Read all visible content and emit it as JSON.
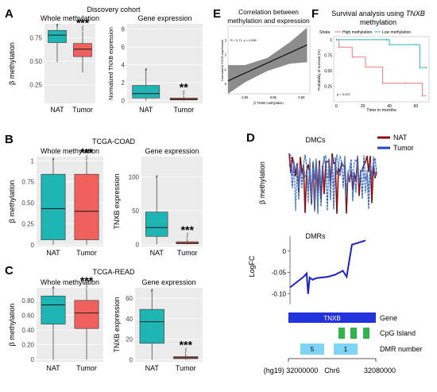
{
  "panel_letters": [
    "A",
    "B",
    "C",
    "D",
    "E",
    "F"
  ],
  "cohorts": {
    "discovery": "Discovery cohort",
    "coad": "TCGA-COAD",
    "read": "TCGA-READ"
  },
  "colors": {
    "nat": "#1fb5b5",
    "tumor": "#f0605d",
    "panel_bg": "#ebebeb",
    "dmr_line": "#1a22c8",
    "gene": "#2233dd",
    "cpg": "#2db44a",
    "dmr_box": "#7fd3f5",
    "km_high": "#f07a7a",
    "km_low": "#2bb5c0"
  },
  "chart_data": [
    {
      "id": "A_methylation",
      "type": "box",
      "title": "Whole methylation",
      "ylabel": "β methylation",
      "categories": [
        "NAT",
        "Tumor"
      ],
      "yticks": [
        0.25,
        0.5,
        0.75
      ],
      "ylim": [
        0.05,
        0.9
      ],
      "boxes": [
        {
          "q1": 0.7,
          "median": 0.78,
          "q3": 0.83,
          "whisker_low": 0.49,
          "whisker_high": 0.87
        },
        {
          "q1": 0.55,
          "median": 0.63,
          "q3": 0.69,
          "whisker_low": 0.38,
          "whisker_high": 0.82
        }
      ],
      "significance": "***"
    },
    {
      "id": "A_expression",
      "type": "box",
      "title": "Gene expression",
      "ylabel": "Normalized TNXB expression",
      "categories": [
        "NAT",
        "Tumor"
      ],
      "yticks": [
        0,
        2,
        4,
        6,
        8
      ],
      "ylim": [
        -0.3,
        8.6
      ],
      "boxes": [
        {
          "q1": 0.3,
          "median": 0.8,
          "q3": 1.7,
          "whisker_low": 0.0,
          "whisker_high": 3.3
        },
        {
          "q1": 0.08,
          "median": 0.15,
          "q3": 0.3,
          "whisker_low": 0.0,
          "whisker_high": 0.55
        }
      ],
      "significance": "**"
    },
    {
      "id": "B_methylation",
      "type": "box",
      "title": "Whole methylation",
      "ylabel": "β methylation",
      "categories": [
        "NAT",
        "Tumor"
      ],
      "yticks": [
        0.0,
        0.25,
        0.5,
        0.75,
        1.0
      ],
      "ylim": [
        -0.02,
        1.05
      ],
      "boxes": [
        {
          "q1": 0.06,
          "median": 0.43,
          "q3": 0.84,
          "whisker_low": 0.0,
          "whisker_high": 1.0
        },
        {
          "q1": 0.06,
          "median": 0.4,
          "q3": 0.84,
          "whisker_low": 0.0,
          "whisker_high": 1.0
        }
      ],
      "significance": "***"
    },
    {
      "id": "B_expression",
      "type": "box",
      "title": "Gene expression",
      "ylabel": "TNXB expression",
      "categories": [
        "NAT",
        "Tumor"
      ],
      "yticks": [
        0,
        50,
        100
      ],
      "ylim": [
        -3,
        130
      ],
      "boxes": [
        {
          "q1": 12,
          "median": 25,
          "q3": 48,
          "whisker_low": 0,
          "whisker_high": 98
        },
        {
          "q1": 1,
          "median": 2,
          "q3": 4,
          "whisker_low": 0,
          "whisker_high": 9
        }
      ],
      "significance": "***"
    },
    {
      "id": "C_methylation",
      "type": "box",
      "title": "Whole methylation",
      "ylabel": "β methylation",
      "categories": [
        "NAT",
        "Tumor"
      ],
      "yticks": [
        0.0,
        0.2,
        0.4,
        0.6,
        0.8
      ],
      "ylim": [
        -0.03,
        0.97
      ],
      "boxes": [
        {
          "q1": 0.48,
          "median": 0.74,
          "q3": 0.86,
          "whisker_low": 0.0,
          "whisker_high": 0.95
        },
        {
          "q1": 0.42,
          "median": 0.63,
          "q3": 0.8,
          "whisker_low": 0.0,
          "whisker_high": 0.95
        }
      ],
      "significance": "***"
    },
    {
      "id": "C_expression",
      "type": "box",
      "title": "Gene expression",
      "ylabel": "TNXB expression",
      "categories": [
        "NAT",
        "Tumor"
      ],
      "yticks": [
        0,
        20,
        40,
        60
      ],
      "ylim": [
        -2,
        70
      ],
      "boxes": [
        {
          "q1": 16,
          "median": 37,
          "q3": 49,
          "whisker_low": 0,
          "whisker_high": 66
        },
        {
          "q1": 1,
          "median": 2,
          "q3": 3,
          "whisker_low": 0,
          "whisker_high": 6
        }
      ],
      "significance": "***"
    },
    {
      "id": "E_correlation",
      "type": "line",
      "title": "Correlation between methylation and expression",
      "xlabel": "β TNXB methylation",
      "ylabel": "Normalized TNXB expression",
      "xticks": [
        0.5,
        0.55,
        0.6
      ],
      "yticks": [
        0,
        1,
        2,
        3
      ],
      "xlim": [
        0.47,
        0.615
      ],
      "ylim": [
        -0.7,
        4.0
      ],
      "annotation": "R = 0.71, p = 0.058",
      "fit_line": [
        [
          0.47,
          0.2
        ],
        [
          0.61,
          2.7
        ]
      ],
      "ci_band": [
        [
          0.47,
          -0.7,
          1.3
        ],
        [
          0.5,
          0.1,
          1.3
        ],
        [
          0.54,
          0.9,
          1.8
        ],
        [
          0.58,
          1.4,
          2.9
        ],
        [
          0.61,
          1.5,
          3.9
        ]
      ]
    },
    {
      "id": "F_survival",
      "type": "line",
      "title": "Survival analysis using TNXB methylation",
      "title_plain": "Survival analysis using ",
      "title_gene": "TNXB",
      "title_tail": "methylation",
      "xlabel": "Time in months",
      "ylabel": "Probability of survival (%)",
      "xticks": [
        0,
        20,
        40,
        60
      ],
      "yticks": [
        0.25,
        0.5,
        0.75,
        1.0
      ],
      "xlim": [
        -2,
        70
      ],
      "ylim": [
        0.0,
        1.05
      ],
      "legend_strata": "Strata",
      "series": [
        {
          "name": "High methylation",
          "steps": [
            [
              0,
              1.0
            ],
            [
              2,
              0.88
            ],
            [
              12,
              0.72
            ],
            [
              22,
              0.56
            ],
            [
              35,
              0.3
            ],
            [
              52,
              0.3
            ],
            [
              65,
              0.1
            ]
          ]
        },
        {
          "name": "Low methylation",
          "steps": [
            [
              0,
              1.0
            ],
            [
              38,
              1.0
            ],
            [
              40,
              0.92
            ],
            [
              60,
              0.92
            ],
            [
              63,
              0.55
            ],
            [
              68,
              0.55
            ]
          ]
        }
      ],
      "annotation": "p = 0.037"
    },
    {
      "id": "D_DMCs",
      "type": "line",
      "title": "DMCs",
      "ylabel": "β methylation",
      "legend": [
        "NAT",
        "Tumor"
      ]
    },
    {
      "id": "D_DMRs",
      "type": "line",
      "title": "DMRs",
      "ylabel": "LogFC",
      "yticks": [
        0.0,
        -0.05,
        -0.1
      ],
      "ylim": [
        -0.125,
        0.035
      ],
      "x": [
        0,
        0.18,
        0.22,
        0.24,
        0.26,
        0.3,
        0.35,
        0.5,
        0.6,
        0.7,
        0.75,
        0.78,
        0.82,
        1.0
      ],
      "values": [
        -0.085,
        -0.06,
        -0.052,
        -0.1,
        -0.062,
        -0.067,
        -0.063,
        -0.06,
        -0.055,
        -0.046,
        -0.06,
        -0.028,
        0.015,
        0.025
      ]
    }
  ],
  "gene_track": {
    "gene_name": "TNXB",
    "row_labels": [
      "Gene",
      "CpG Island",
      "DMR number"
    ],
    "dmr_numbers": [
      "5",
      "1"
    ],
    "chr": "Chr6",
    "start_label": "(hg19) 32000000",
    "end_label": "32080000"
  },
  "legend_high": "High methylation",
  "legend_low": "Low methylation"
}
